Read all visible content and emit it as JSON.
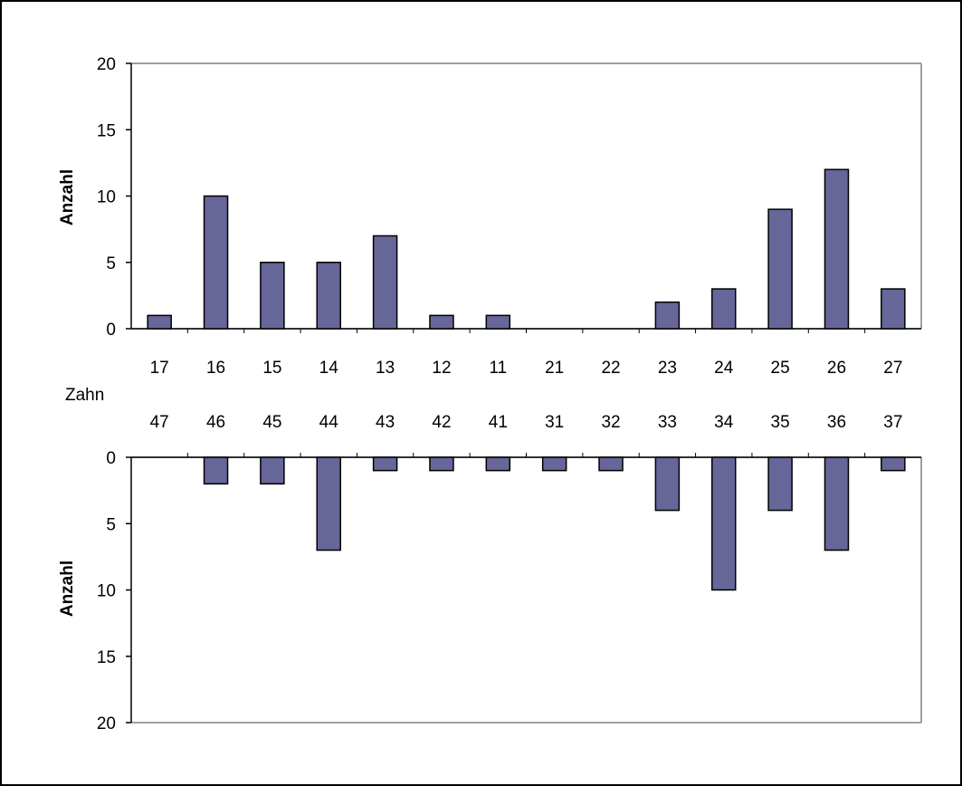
{
  "chart_data": [
    {
      "type": "bar",
      "panel": "upper",
      "categories": [
        "17",
        "16",
        "15",
        "14",
        "13",
        "12",
        "11",
        "21",
        "22",
        "23",
        "24",
        "25",
        "26",
        "27"
      ],
      "values": [
        1,
        10,
        5,
        5,
        7,
        1,
        1,
        0,
        0,
        2,
        3,
        9,
        12,
        3
      ],
      "title": "",
      "xlabel": "Zahn",
      "ylabel": "Anzahl",
      "ylim": [
        0,
        20
      ],
      "yticks": [
        0,
        5,
        10,
        15,
        20
      ],
      "y_direction": "up",
      "grid": false,
      "legend": "none",
      "bar_color": "#666699"
    },
    {
      "type": "bar",
      "panel": "lower",
      "categories": [
        "47",
        "46",
        "45",
        "44",
        "43",
        "42",
        "41",
        "31",
        "32",
        "33",
        "34",
        "35",
        "36",
        "37"
      ],
      "values": [
        0,
        2,
        2,
        7,
        1,
        1,
        1,
        1,
        1,
        4,
        10,
        4,
        7,
        1
      ],
      "title": "",
      "xlabel": "Zahn",
      "ylabel": "Anzahl",
      "ylim": [
        0,
        20
      ],
      "yticks": [
        0,
        5,
        10,
        15,
        20
      ],
      "y_direction": "down",
      "grid": false,
      "legend": "none",
      "bar_color": "#666699"
    }
  ],
  "shared_label": "Zahn"
}
